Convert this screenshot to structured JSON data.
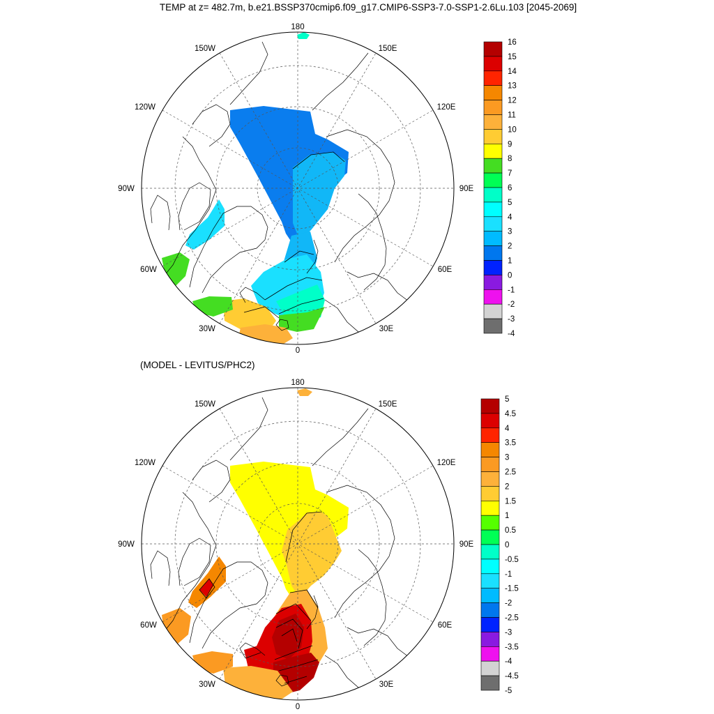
{
  "title": "TEMP at z= 482.7m, b.e21.BSSP370cmip6.f09_g17.CMIP6-SSP3-7.0-SSP1-2.6Lu.103 [2045-2069]",
  "subtitle": "(MODEL - LEVITUS/PHC2)",
  "longitude_labels": [
    "180",
    "150E",
    "120E",
    "90E",
    "60E",
    "30E",
    "0",
    "30W",
    "60W",
    "90W",
    "120W",
    "150W"
  ],
  "panels": [
    {
      "name": "model-temperature",
      "colorbar": {
        "labels": [
          "16",
          "15",
          "14",
          "13",
          "12",
          "11",
          "10",
          "9",
          "8",
          "7",
          "6",
          "5",
          "4",
          "3",
          "2",
          "1",
          "0",
          "-1",
          "-2",
          "-3",
          "-4"
        ],
        "colors": [
          "#b40000",
          "#dc0000",
          "#ff2400",
          "#f58700",
          "#fb9a22",
          "#fdb13a",
          "#ffcc33",
          "#ffff00",
          "#44dd22",
          "#00ff55",
          "#00ffc8",
          "#00ffff",
          "#1ae0ff",
          "#00bbff",
          "#0077ee",
          "#0022ff",
          "#8a1ae0",
          "#ee11ee",
          "#d3d3d3",
          "#6e6e6e"
        ]
      }
    },
    {
      "name": "model-minus-levitus",
      "colorbar": {
        "labels": [
          "5",
          "4.5",
          "4",
          "3.5",
          "3",
          "2.5",
          "2",
          "1.5",
          "1",
          "0.5",
          "0",
          "-0.5",
          "-1",
          "-1.5",
          "-2",
          "-2.5",
          "-3",
          "-3.5",
          "-4",
          "-4.5",
          "-5"
        ],
        "colors": [
          "#b40000",
          "#dc0000",
          "#ff2400",
          "#f58700",
          "#fb9a22",
          "#fdb13a",
          "#ffcc33",
          "#ffff00",
          "#55ff00",
          "#00ff55",
          "#00ffc8",
          "#00ffff",
          "#1ae0ff",
          "#00bbff",
          "#0077ee",
          "#0022ff",
          "#8a1ae0",
          "#ee11ee",
          "#d3d3d3",
          "#6e6e6e"
        ]
      }
    }
  ]
}
